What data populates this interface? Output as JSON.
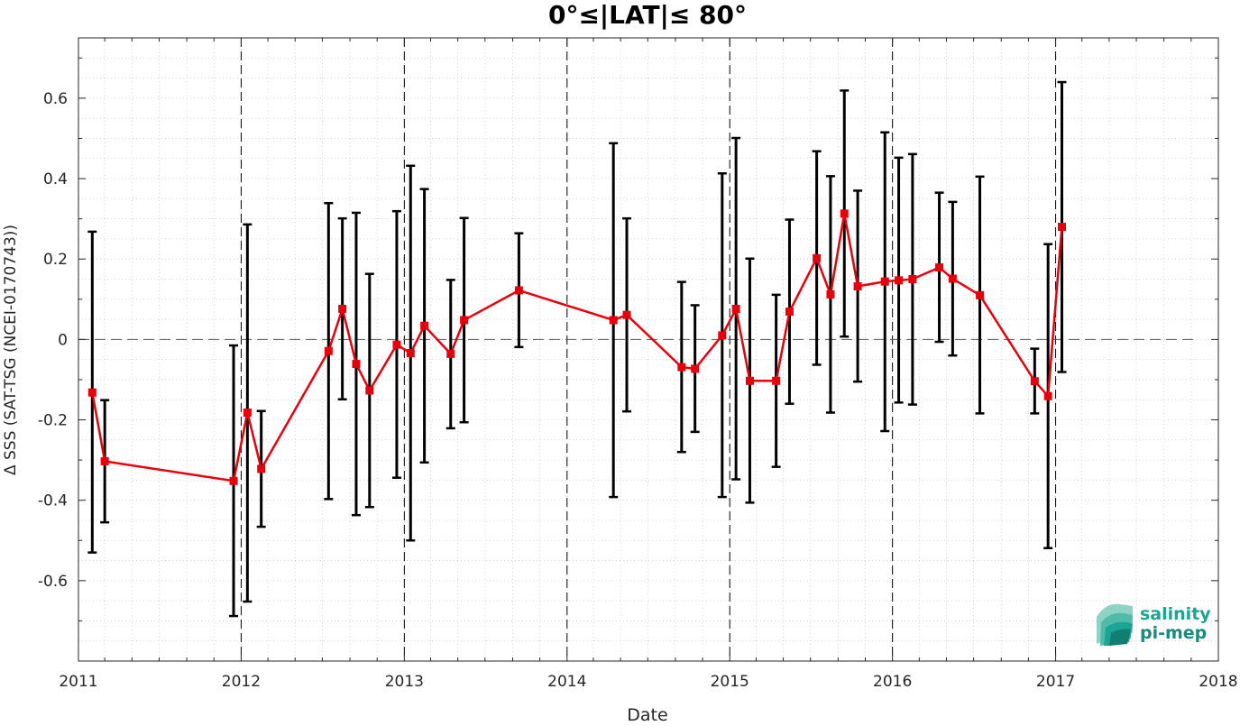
{
  "chart_data": {
    "type": "line",
    "title": "0°≤|LAT|≤ 80°",
    "xlabel": "Date",
    "ylabel": "Δ SSS (SAT-TSG (NCEI-0170743))",
    "xlim": [
      "2011-01-01",
      "2018-01-01"
    ],
    "ylim": [
      -0.8,
      0.75
    ],
    "xticks": [
      "2011",
      "2012",
      "2013",
      "2014",
      "2015",
      "2016",
      "2017",
      "2018"
    ],
    "yticks": [
      "-0.6",
      "-0.4",
      "-0.2",
      "0",
      "0.2",
      "0.4",
      "0.6"
    ],
    "grid": true,
    "legend": "none",
    "series": [
      {
        "color": "#e8000b",
        "marker": "square",
        "points": [
          {
            "x": "2011-02-01",
            "y": -0.132,
            "err_low": -0.53,
            "err_high": 0.268
          },
          {
            "x": "2011-03-01",
            "y": -0.303,
            "err_low": -0.455,
            "err_high": -0.151
          },
          {
            "x": "2011-12-15",
            "y": -0.352,
            "err_low": -0.688,
            "err_high": -0.015
          },
          {
            "x": "2012-01-15",
            "y": -0.182,
            "err_low": -0.652,
            "err_high": 0.286
          },
          {
            "x": "2012-02-15",
            "y": -0.322,
            "err_low": -0.466,
            "err_high": -0.178
          },
          {
            "x": "2012-07-15",
            "y": -0.029,
            "err_low": -0.397,
            "err_high": 0.339
          },
          {
            "x": "2012-08-15",
            "y": 0.076,
            "err_low": -0.149,
            "err_high": 0.301
          },
          {
            "x": "2012-09-15",
            "y": -0.061,
            "err_low": -0.437,
            "err_high": 0.315
          },
          {
            "x": "2012-10-15",
            "y": -0.127,
            "err_low": -0.417,
            "err_high": 0.163
          },
          {
            "x": "2012-12-15",
            "y": -0.013,
            "err_low": -0.344,
            "err_high": 0.319
          },
          {
            "x": "2013-01-15",
            "y": -0.034,
            "err_low": -0.5,
            "err_high": 0.432
          },
          {
            "x": "2013-02-15",
            "y": 0.034,
            "err_low": -0.306,
            "err_high": 0.374
          },
          {
            "x": "2013-04-15",
            "y": -0.036,
            "err_low": -0.221,
            "err_high": 0.148
          },
          {
            "x": "2013-05-15",
            "y": 0.048,
            "err_low": -0.206,
            "err_high": 0.302
          },
          {
            "x": "2013-09-15",
            "y": 0.122,
            "err_low": -0.019,
            "err_high": 0.264
          },
          {
            "x": "2014-04-15",
            "y": 0.048,
            "err_low": -0.392,
            "err_high": 0.488
          },
          {
            "x": "2014-05-15",
            "y": 0.061,
            "err_low": -0.179,
            "err_high": 0.301
          },
          {
            "x": "2014-09-15",
            "y": -0.069,
            "err_low": -0.28,
            "err_high": 0.143
          },
          {
            "x": "2014-10-15",
            "y": -0.073,
            "err_low": -0.23,
            "err_high": 0.085
          },
          {
            "x": "2014-12-15",
            "y": 0.01,
            "err_low": -0.392,
            "err_high": 0.413
          },
          {
            "x": "2015-01-15",
            "y": 0.076,
            "err_low": -0.348,
            "err_high": 0.501
          },
          {
            "x": "2015-02-15",
            "y": -0.103,
            "err_low": -0.406,
            "err_high": 0.201
          },
          {
            "x": "2015-04-15",
            "y": -0.103,
            "err_low": -0.317,
            "err_high": 0.111
          },
          {
            "x": "2015-05-15",
            "y": 0.069,
            "err_low": -0.16,
            "err_high": 0.298
          },
          {
            "x": "2015-07-15",
            "y": 0.202,
            "err_low": -0.063,
            "err_high": 0.468
          },
          {
            "x": "2015-08-15",
            "y": 0.112,
            "err_low": -0.182,
            "err_high": 0.406
          },
          {
            "x": "2015-09-15",
            "y": 0.313,
            "err_low": 0.007,
            "err_high": 0.619
          },
          {
            "x": "2015-10-15",
            "y": 0.132,
            "err_low": -0.105,
            "err_high": 0.37
          },
          {
            "x": "2015-12-15",
            "y": 0.144,
            "err_low": -0.228,
            "err_high": 0.515
          },
          {
            "x": "2016-01-15",
            "y": 0.147,
            "err_low": -0.157,
            "err_high": 0.452
          },
          {
            "x": "2016-02-15",
            "y": 0.15,
            "err_low": -0.162,
            "err_high": 0.461
          },
          {
            "x": "2016-04-15",
            "y": 0.179,
            "err_low": -0.006,
            "err_high": 0.365
          },
          {
            "x": "2016-05-15",
            "y": 0.151,
            "err_low": -0.04,
            "err_high": 0.342
          },
          {
            "x": "2016-07-15",
            "y": 0.11,
            "err_low": -0.184,
            "err_high": 0.405
          },
          {
            "x": "2016-11-15",
            "y": -0.104,
            "err_low": -0.184,
            "err_high": -0.023
          },
          {
            "x": "2016-12-15",
            "y": -0.141,
            "err_low": -0.519,
            "err_high": 0.237
          },
          {
            "x": "2017-01-15",
            "y": 0.28,
            "err_low": -0.081,
            "err_high": 0.64
          }
        ]
      }
    ],
    "year_lines": [
      "2012",
      "2013",
      "2014",
      "2015",
      "2016",
      "2017"
    ],
    "zero_line": 0
  },
  "logo": {
    "line1": "salinity",
    "line2": "pi-mep",
    "color": "#1aa595"
  }
}
